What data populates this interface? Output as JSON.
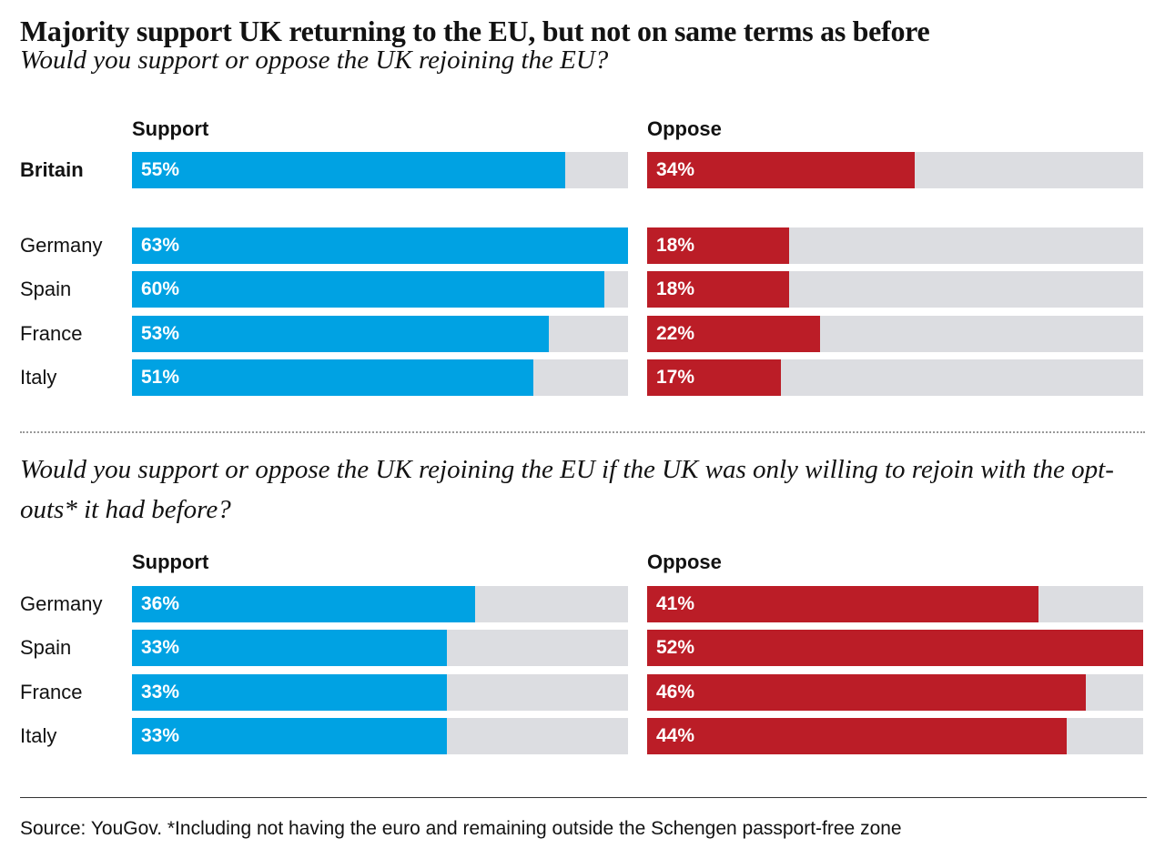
{
  "title": "Majority support UK returning to the EU, but not on same terms as before",
  "source": "Source: YouGov. *Including not having the euro and remaining outside the Schengen passport-free zone",
  "chart_data": [
    {
      "type": "bar",
      "subtitle": "Would you support or oppose the UK rejoining the EU?",
      "categories": [
        "Britain",
        "Germany",
        "Spain",
        "France",
        "Italy"
      ],
      "xlim": [
        0,
        63
      ],
      "series": [
        {
          "name": "Support",
          "color": "#00a2e3",
          "values": [
            55,
            63,
            60,
            53,
            51
          ],
          "value_labels": [
            "55%",
            "63%",
            "60%",
            "53%",
            "51%"
          ]
        },
        {
          "name": "Oppose",
          "color": "#bb1d27",
          "values": [
            34,
            18,
            18,
            22,
            17
          ],
          "value_labels": [
            "34%",
            "18%",
            "18%",
            "22%",
            "17%"
          ]
        }
      ]
    },
    {
      "type": "bar",
      "subtitle": "Would you support or oppose the UK rejoining the EU if the UK was only willing to rejoin with the opt-outs* it had before?",
      "categories": [
        "Germany",
        "Spain",
        "France",
        "Italy"
      ],
      "xlim": [
        0,
        52
      ],
      "series": [
        {
          "name": "Support",
          "color": "#00a2e3",
          "values": [
            36,
            33,
            33,
            33
          ],
          "value_labels": [
            "36%",
            "33%",
            "33%",
            "33%"
          ]
        },
        {
          "name": "Oppose",
          "color": "#bb1d27",
          "values": [
            41,
            52,
            46,
            44
          ],
          "value_labels": [
            "41%",
            "52%",
            "46%",
            "44%"
          ]
        }
      ]
    }
  ]
}
